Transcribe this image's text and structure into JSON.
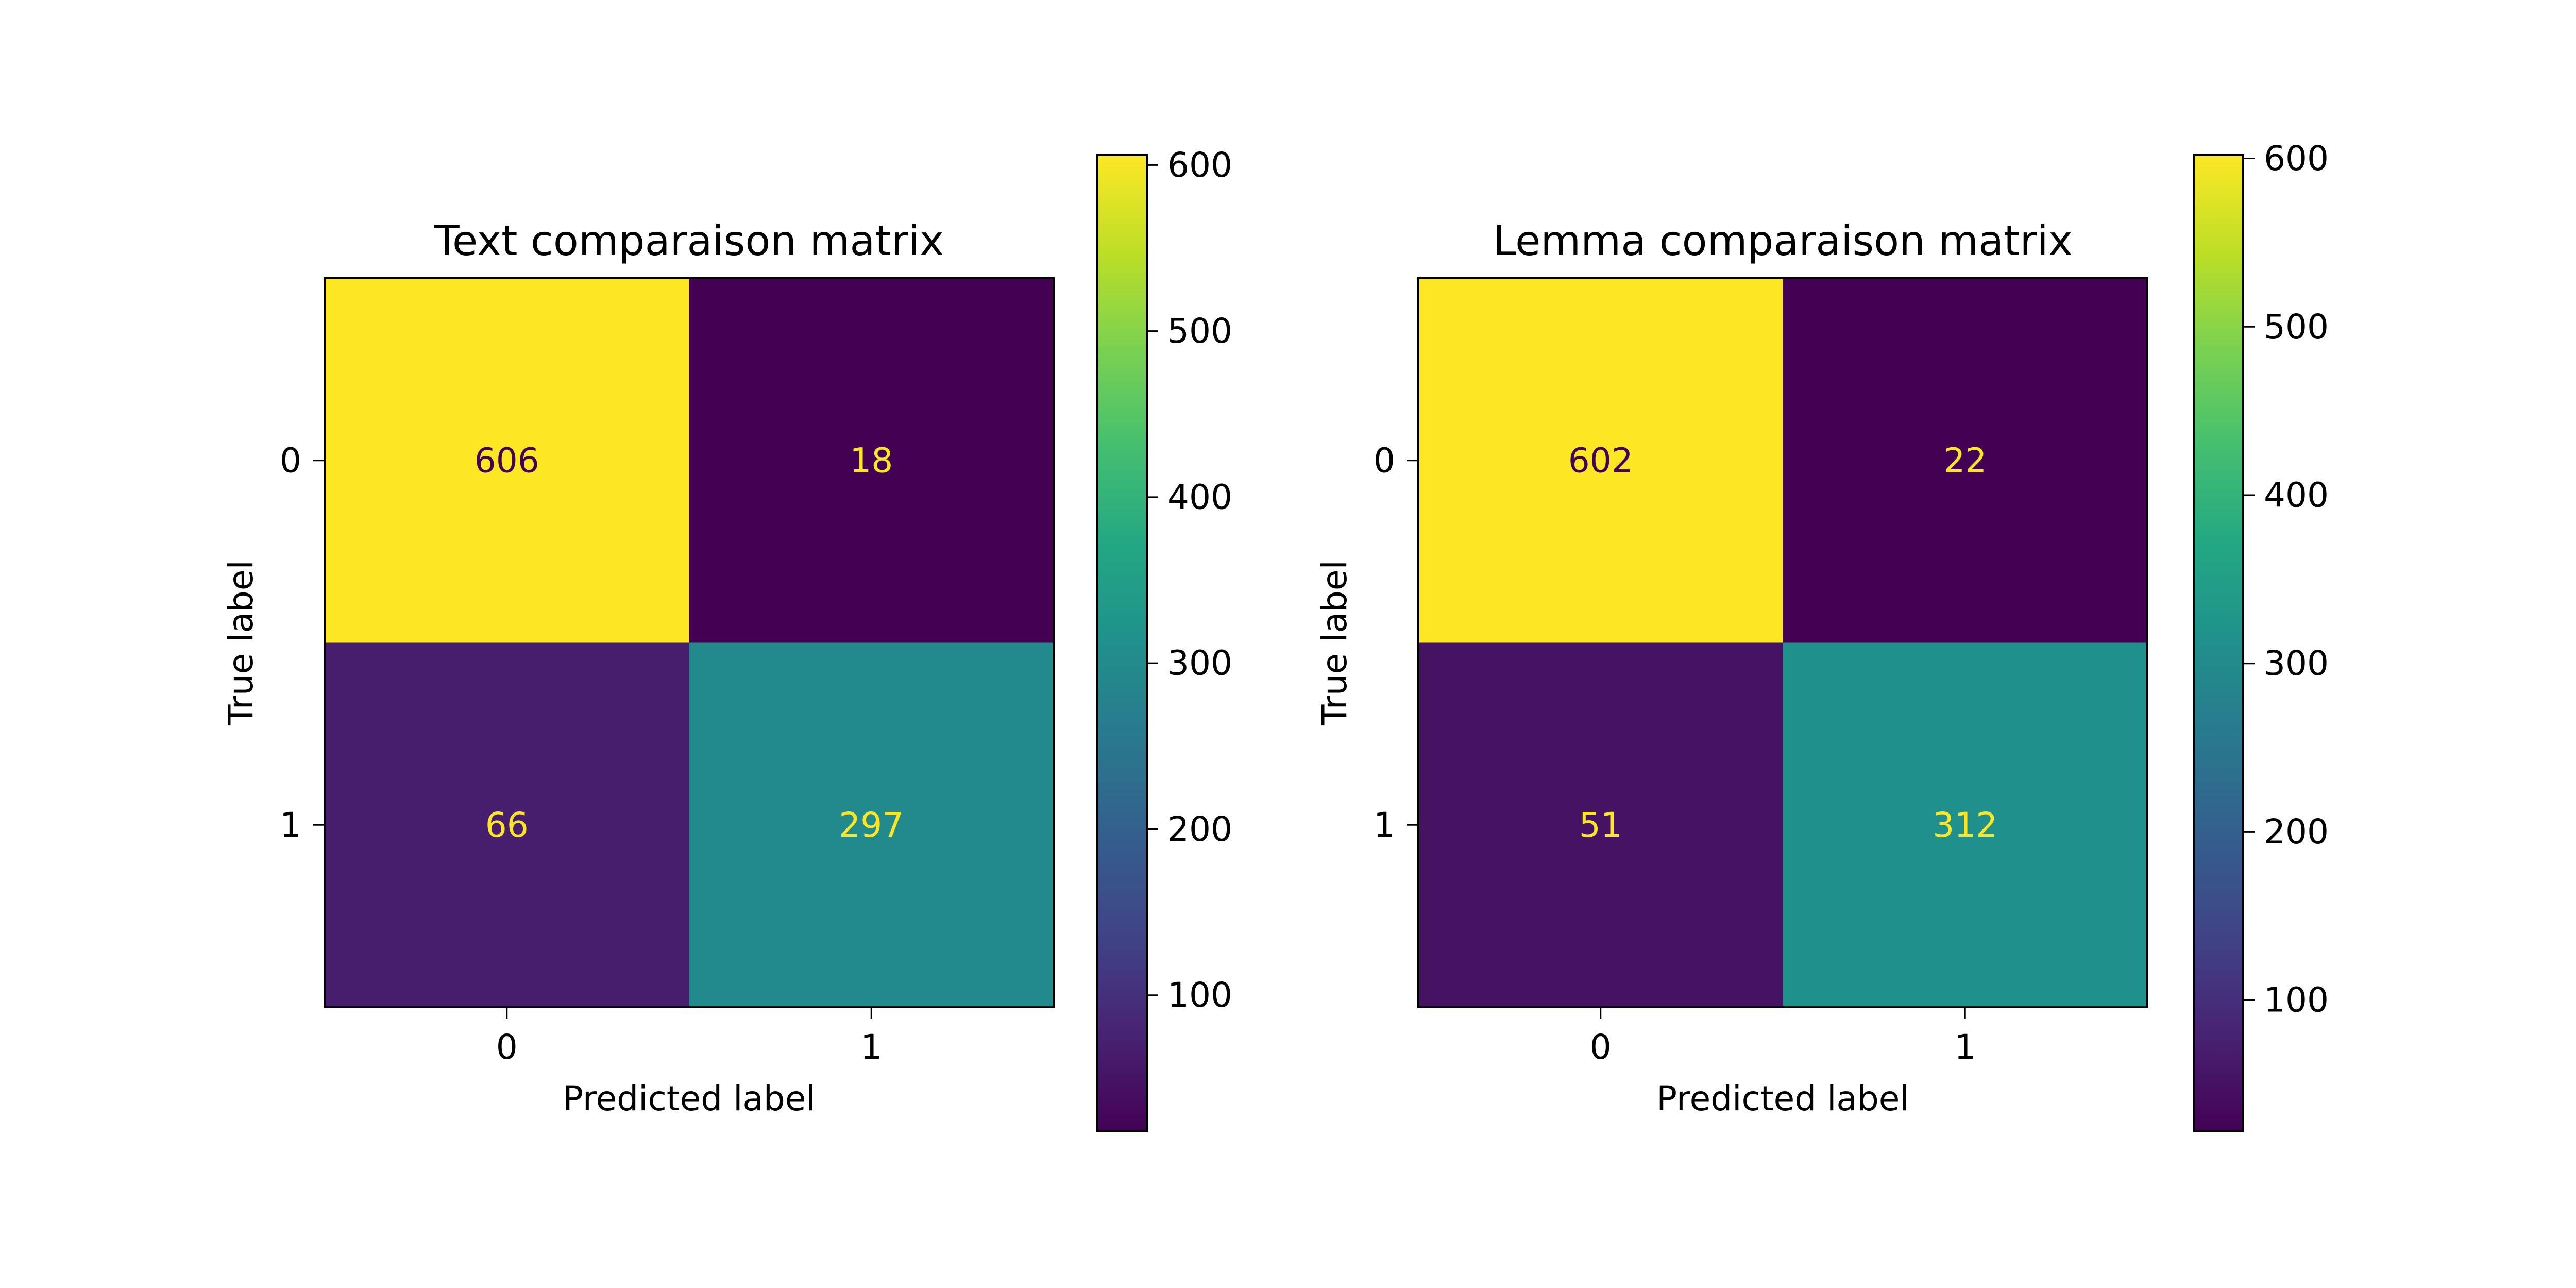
{
  "chart_data": [
    {
      "type": "heatmap",
      "title": "Text comparaison matrix",
      "xlabel": "Predicted label",
      "ylabel": "True label",
      "x_categories": [
        "0",
        "1"
      ],
      "y_categories": [
        "0",
        "1"
      ],
      "values": [
        [
          606,
          18
        ],
        [
          66,
          297
        ]
      ],
      "colormap": "viridis",
      "colorbar": {
        "range": [
          18,
          606
        ],
        "ticks": [
          100,
          200,
          300,
          400,
          500,
          600
        ]
      }
    },
    {
      "type": "heatmap",
      "title": "Lemma comparaison matrix",
      "xlabel": "Predicted label",
      "ylabel": "True label",
      "x_categories": [
        "0",
        "1"
      ],
      "y_categories": [
        "0",
        "1"
      ],
      "values": [
        [
          602,
          22
        ],
        [
          51,
          312
        ]
      ],
      "colormap": "viridis",
      "colorbar": {
        "range": [
          22,
          602
        ],
        "ticks": [
          100,
          200,
          300,
          400,
          500,
          600
        ]
      }
    }
  ]
}
